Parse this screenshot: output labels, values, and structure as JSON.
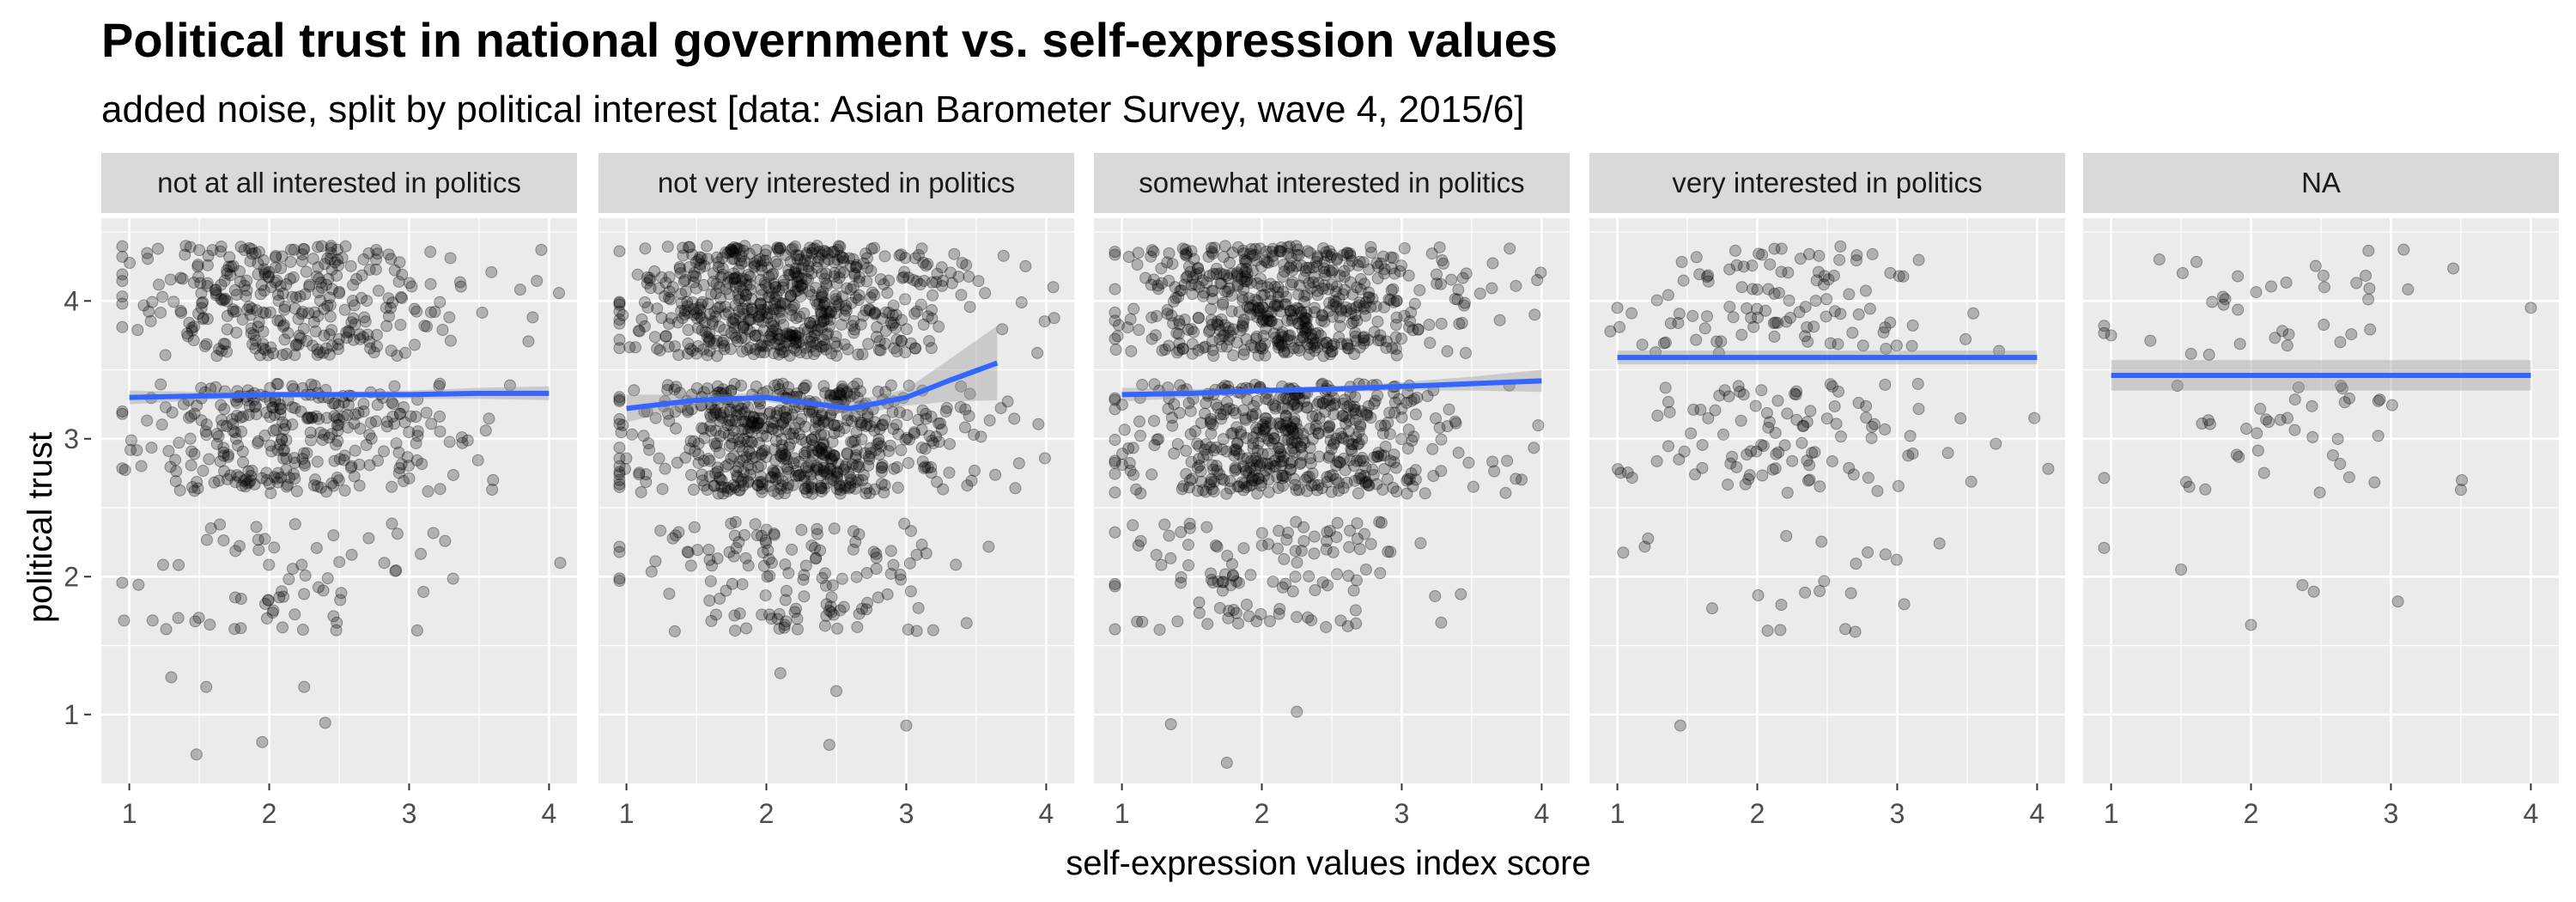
{
  "chart_data": {
    "type": "scatter",
    "title": "Political trust in national government vs. self-expression values",
    "subtitle": "added noise, split by political interest [data: Asian Barometer Survey, wave 4, 2015/6]",
    "xlabel": "self-expression values index score",
    "ylabel": "political trust",
    "xlim": [
      0.8,
      4.2
    ],
    "ylim": [
      0.5,
      4.6
    ],
    "x_ticks": [
      1,
      2,
      3,
      4
    ],
    "y_ticks": [
      1,
      2,
      3,
      4
    ],
    "grid": true,
    "point_color": "#000000",
    "point_alpha": 0.25,
    "smooth_color": "#3366FF",
    "ribbon_color": "#999999",
    "panel_background": "#EBEBEB",
    "strip_background": "#D9D9D9",
    "facets": [
      {
        "label": "not at all interested in politics",
        "n_points": 700,
        "smooth_x": [
          1.0,
          1.5,
          2.0,
          2.5,
          3.0,
          3.5,
          4.0
        ],
        "smooth_y": [
          3.3,
          3.31,
          3.32,
          3.32,
          3.32,
          3.33,
          3.33
        ],
        "ribbon_halfwidth": [
          0.05,
          0.03,
          0.02,
          0.02,
          0.03,
          0.04,
          0.05
        ],
        "outliers": [
          [
            0.95,
            4.32
          ],
          [
            1.3,
            1.27
          ],
          [
            1.48,
            0.71
          ],
          [
            1.55,
            1.2
          ],
          [
            1.95,
            0.8
          ],
          [
            2.25,
            1.2
          ],
          [
            2.4,
            0.94
          ],
          [
            4.08,
            2.1
          ],
          [
            3.6,
            2.7
          ],
          [
            1.35,
            1.7
          ]
        ]
      },
      {
        "label": "not very interested in politics",
        "n_points": 1400,
        "smooth_x": [
          1.0,
          1.5,
          2.0,
          2.3,
          2.6,
          3.0,
          3.3,
          3.65
        ],
        "smooth_y": [
          3.22,
          3.28,
          3.3,
          3.26,
          3.22,
          3.3,
          3.42,
          3.55
        ],
        "ribbon_halfwidth": [
          0.1,
          0.04,
          0.03,
          0.04,
          0.05,
          0.06,
          0.15,
          0.27
        ],
        "outliers": [
          [
            0.95,
            1.97
          ],
          [
            2.1,
            1.3
          ],
          [
            2.45,
            0.78
          ],
          [
            2.5,
            1.17
          ],
          [
            3.0,
            0.92
          ],
          [
            0.95,
            2.65
          ],
          [
            4.05,
            4.1
          ]
        ]
      },
      {
        "label": "somewhat interested in politics",
        "n_points": 1200,
        "smooth_x": [
          1.0,
          1.5,
          2.0,
          2.5,
          3.0,
          3.5,
          4.0
        ],
        "smooth_y": [
          3.32,
          3.33,
          3.35,
          3.36,
          3.38,
          3.4,
          3.42
        ],
        "ribbon_halfwidth": [
          0.05,
          0.03,
          0.02,
          0.02,
          0.03,
          0.05,
          0.08
        ],
        "outliers": [
          [
            1.35,
            0.93
          ],
          [
            1.75,
            0.65
          ],
          [
            2.25,
            1.02
          ],
          [
            3.95,
            3.9
          ]
        ]
      },
      {
        "label": "very interested in politics",
        "n_points": 230,
        "smooth_x": [
          1.0,
          4.0
        ],
        "smooth_y": [
          3.59,
          3.59
        ],
        "ribbon_halfwidth": [
          0.05,
          0.05
        ],
        "outliers": [
          [
            1.45,
            0.92
          ],
          [
            2.7,
            1.6
          ],
          [
            3.05,
            1.8
          ],
          [
            3.98,
            3.15
          ],
          [
            1.0,
            3.95
          ]
        ]
      },
      {
        "label": "NA",
        "n_points": 80,
        "smooth_x": [
          1.0,
          4.0
        ],
        "smooth_y": [
          3.46,
          3.46
        ],
        "ribbon_halfwidth": [
          0.11,
          0.11
        ],
        "outliers": [
          [
            2.0,
            1.65
          ],
          [
            3.05,
            1.82
          ],
          [
            3.5,
            2.63
          ],
          [
            1.0,
            3.75
          ],
          [
            4.0,
            3.95
          ]
        ]
      }
    ]
  }
}
